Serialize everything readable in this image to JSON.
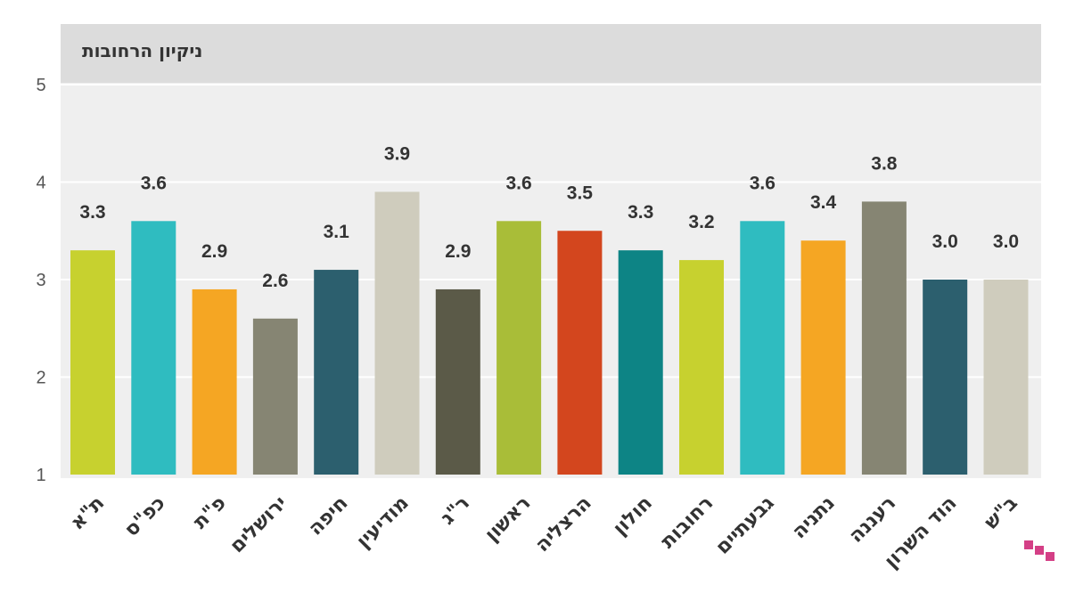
{
  "chart_data": {
    "type": "bar",
    "title": "ניקיון הרחובות",
    "categories": [
      "ת\"א",
      "כפ\"ס",
      "פ\"ת",
      "ירושלים",
      "חיפה",
      "מודיעין",
      "ר\"ג",
      "ראשון",
      "הרצליה",
      "חולון",
      "רחובות",
      "גבעתיים",
      "נתניה",
      "רעננה",
      "הוד השרון",
      "ב\"ש"
    ],
    "values": [
      3.3,
      3.6,
      2.9,
      2.6,
      3.1,
      3.9,
      2.9,
      3.6,
      3.5,
      3.3,
      3.2,
      3.6,
      3.4,
      3.8,
      3.0,
      3.0
    ],
    "value_labels": [
      "3.3",
      "3.6",
      "2.9",
      "2.6",
      "3.1",
      "3.9",
      "2.9",
      "3.6",
      "3.5",
      "3.3",
      "3.2",
      "3.6",
      "3.4",
      "3.8",
      "3.0",
      "3.0"
    ],
    "colors": [
      "#c7d12f",
      "#2fbcc0",
      "#f5a623",
      "#868573",
      "#2c5f6e",
      "#cfccbd",
      "#5b5a48",
      "#a9bd38",
      "#d3461e",
      "#0d8485",
      "#c7d12f",
      "#2fbcc0",
      "#f5a623",
      "#868573",
      "#2c5f6e",
      "#cfccbd"
    ],
    "ylim": [
      1,
      5
    ],
    "yticks": [
      "1",
      "2",
      "3",
      "4",
      "5"
    ],
    "xlabel": "",
    "ylabel": "",
    "grid": true,
    "background": "#efefef",
    "title_band_color": "#dcdcdc"
  }
}
